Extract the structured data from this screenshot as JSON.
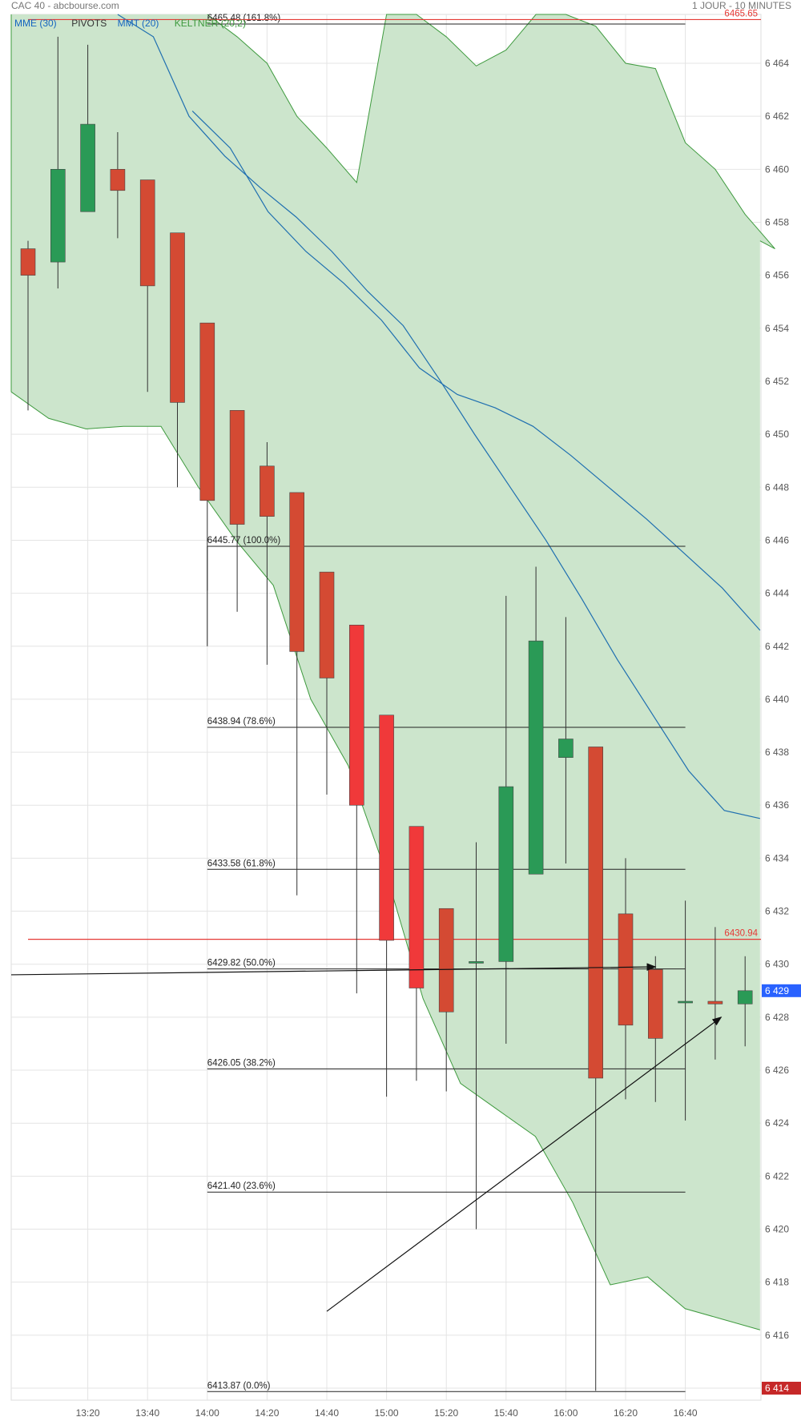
{
  "header": {
    "title": "CAC 40 - abcbourse.com",
    "period": "1 JOUR - 10 MINUTES"
  },
  "legend": [
    {
      "label": "MME (30)",
      "color": "#1565c0"
    },
    {
      "label": "PIVOTS",
      "color": "#333333"
    },
    {
      "label": "MMT (20)",
      "color": "#1565c0"
    },
    {
      "label": "KELTNER (20,2)",
      "color": "#3e9a3e"
    }
  ],
  "colors": {
    "up": "#2a9a56",
    "down": "#d44a33",
    "keltner_fill": "#cce5cc",
    "keltner_line": "#3e9a3e",
    "ma_line": "#1f6fb0",
    "pivot_line": "#e53935",
    "last_price_bg": "#2962ff",
    "min_price_bg": "#c62828"
  },
  "chart_data": {
    "type": "candlestick",
    "x_ticks": [
      "13:20",
      "13:40",
      "14:00",
      "14:20",
      "14:40",
      "15:00",
      "15:20",
      "15:40",
      "16:00",
      "16:20",
      "16:40"
    ],
    "y_ticks": [
      "6 414",
      "6 416",
      "6 418",
      "6 420",
      "6 422",
      "6 424",
      "6 426",
      "6 428",
      "6 430",
      "6 432",
      "6 434",
      "6 436",
      "6 438",
      "6 440",
      "6 442",
      "6 444",
      "6 446",
      "6 448",
      "6 450",
      "6 452",
      "6 454",
      "6 456",
      "6 458",
      "6 460",
      "6 462",
      "6 464"
    ],
    "y_range": [
      6413.6,
      6466.2
    ],
    "candles": [
      {
        "t": 0,
        "o": 6457.0,
        "h": 6457.3,
        "l": 6450.9,
        "c": 6456.0
      },
      {
        "t": 1,
        "o": 6456.5,
        "h": 6465.0,
        "l": 6455.5,
        "c": 6460.0
      },
      {
        "t": 2,
        "o": 6458.4,
        "h": 6464.7,
        "l": 6458.4,
        "c": 6461.7
      },
      {
        "t": 3,
        "o": 6460.0,
        "h": 6461.4,
        "l": 6457.4,
        "c": 6459.2
      },
      {
        "t": 4,
        "o": 6459.6,
        "h": 6459.6,
        "l": 6451.6,
        "c": 6455.6
      },
      {
        "t": 5,
        "o": 6457.6,
        "h": 6457.6,
        "l": 6448.0,
        "c": 6451.2
      },
      {
        "t": 6,
        "o": 6454.2,
        "h": 6454.2,
        "l": 6444.1,
        "c": 6447.5
      },
      {
        "t": 7,
        "o": 6450.9,
        "h": 6450.9,
        "l": 6443.3,
        "c": 6446.6
      },
      {
        "t": 8,
        "o": 6448.8,
        "h": 6449.7,
        "l": 6441.3,
        "c": 6446.9
      },
      {
        "t": 9,
        "o": 6447.8,
        "h": 6447.8,
        "l": 6432.6,
        "c": 6441.8
      },
      {
        "t": 10,
        "o": 6444.8,
        "h": 6444.8,
        "l": 6436.4,
        "c": 6440.8
      },
      {
        "t": 11,
        "o": 6442.8,
        "h": 6442.8,
        "l": 6428.9,
        "c": 6436.0
      },
      {
        "t": 12,
        "o": 6439.4,
        "h": 6439.4,
        "l": 6425.0,
        "c": 6430.9
      },
      {
        "t": 13,
        "o": 6435.2,
        "h": 6435.2,
        "l": 6425.6,
        "c": 6429.1
      },
      {
        "t": 14,
        "o": 6432.1,
        "h": 6432.1,
        "l": 6425.2,
        "c": 6428.2
      },
      {
        "t": 15,
        "o": 6430.1,
        "h": 6434.6,
        "l": 6420.0,
        "c": 6430.1
      },
      {
        "t": 16,
        "o": 6430.1,
        "h": 6443.9,
        "l": 6427.0,
        "c": 6436.7
      },
      {
        "t": 17,
        "o": 6433.4,
        "h": 6445.0,
        "l": 6433.4,
        "c": 6442.2
      },
      {
        "t": 18,
        "o": 6437.8,
        "h": 6443.1,
        "l": 6433.8,
        "c": 6438.5
      },
      {
        "t": 19,
        "o": 6438.2,
        "h": 6438.2,
        "l": 6413.9,
        "c": 6425.7
      },
      {
        "t": 20,
        "o": 6431.9,
        "h": 6434.0,
        "l": 6424.9,
        "c": 6427.7
      },
      {
        "t": 21,
        "o": 6429.8,
        "h": 6430.3,
        "l": 6424.8,
        "c": 6427.2
      },
      {
        "t": 22,
        "o": 6428.6,
        "h": 6432.4,
        "l": 6424.1,
        "c": 6428.6
      },
      {
        "t": 23,
        "o": 6428.6,
        "h": 6431.4,
        "l": 6426.4,
        "c": 6428.5
      },
      {
        "t": 24,
        "o": 6428.5,
        "h": 6430.3,
        "l": 6426.9,
        "c": 6429.0
      }
    ],
    "keltner_upper": [
      null,
      null,
      null,
      null,
      null,
      null,
      6465.9,
      6465.0,
      6464.0,
      6462.0,
      6460.8,
      6459.5,
      6467.0,
      6467.0,
      6465.0,
      6463.9,
      6464.5,
      6466.4,
      6466.2,
      6465.4,
      6464.0,
      6463.8,
      6461.0,
      6460.0,
      6458.3,
      6457.0
    ],
    "keltner_lower": [
      6451.6,
      6450.6,
      6450.2,
      6450.3,
      6450.3,
      6448.0,
      6446.0,
      6444.3,
      6440.0,
      6437.5,
      6433.5,
      6428.7,
      6425.5,
      6424.5,
      6423.5,
      6421.0,
      6417.9,
      6418.2,
      6417.0,
      6416.6,
      6416.2
    ],
    "mme30": [
      6466.5,
      6465.0,
      6462.0,
      6460.5,
      6459.3,
      6458.2,
      6456.9,
      6455.4,
      6454.1,
      6452.1,
      6450.0,
      6448.0,
      6446.0,
      6443.8,
      6441.5,
      6439.4,
      6437.3,
      6435.8,
      6435.5
    ],
    "mmt20": [
      6462.2,
      6460.8,
      6458.4,
      6456.9,
      6455.7,
      6454.3,
      6452.5,
      6451.5,
      6451.0,
      6450.3,
      6449.2,
      6448.0,
      6446.8,
      6445.5,
      6444.2,
      6442.6
    ],
    "fibonacci": [
      {
        "level": 6465.48,
        "label": "6465.48",
        "pct": "(161.8%)"
      },
      {
        "level": 6445.77,
        "label": "6445.77",
        "pct": "(100.0%)"
      },
      {
        "level": 6438.94,
        "label": "6438.94",
        "pct": "(78.6%)"
      },
      {
        "level": 6433.58,
        "label": "6433.58",
        "pct": "(61.8%)"
      },
      {
        "level": 6429.82,
        "label": "6429.82",
        "pct": "(50.0%)"
      },
      {
        "level": 6426.05,
        "label": "6426.05",
        "pct": "(38.2%)"
      },
      {
        "level": 6421.4,
        "label": "6421.40",
        "pct": "(23.6%)"
      },
      {
        "level": 6413.87,
        "label": "6413.87",
        "pct": "(0.0%)"
      }
    ],
    "pivots": [
      {
        "level": 6465.65,
        "label": "6465.65"
      },
      {
        "level": 6430.94,
        "label": "6430.94"
      }
    ],
    "trend_lines": [
      {
        "from": [
          -1.0,
          6429.6
        ],
        "to": [
          21.0,
          6429.9
        ],
        "arrow": true
      },
      {
        "from": [
          10.0,
          6416.9
        ],
        "to": [
          23.2,
          6428.0
        ],
        "arrow": true
      }
    ],
    "last_price_tag": "6 429",
    "min_price_tag": "6 414"
  }
}
